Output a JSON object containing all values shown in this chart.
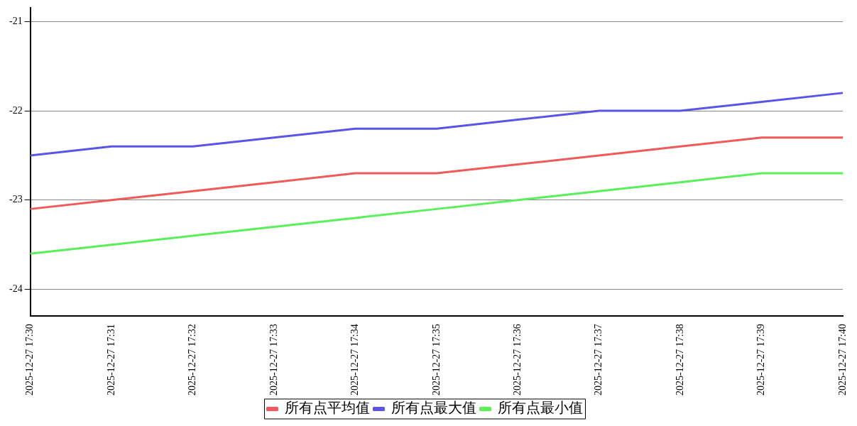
{
  "chart_data": {
    "type": "line",
    "categories": [
      "2025-12-27 17:30",
      "2025-12-27 17:31",
      "2025-12-27 17:32",
      "2025-12-27 17:33",
      "2025-12-27 17:34",
      "2025-12-27 17:35",
      "2025-12-27 17:36",
      "2025-12-27 17:37",
      "2025-12-27 17:38",
      "2025-12-27 17:39",
      "2025-12-27 17:40"
    ],
    "series": [
      {
        "name": "所有点平均值",
        "color": "#f05a5a",
        "values": [
          -23.1,
          -23.0,
          -22.9,
          -22.8,
          -22.7,
          -22.7,
          -22.6,
          -22.5,
          -22.4,
          -22.3,
          -22.3
        ]
      },
      {
        "name": "所有点最大值",
        "color": "#5a55e6",
        "values": [
          -22.5,
          -22.4,
          -22.4,
          -22.3,
          -22.2,
          -22.2,
          -22.1,
          -22.0,
          -22.0,
          -21.9,
          -21.8
        ]
      },
      {
        "name": "所有点最小值",
        "color": "#5af05a",
        "values": [
          -23.6,
          -23.5,
          -23.4,
          -23.3,
          -23.2,
          -23.1,
          -23.0,
          -22.9,
          -22.8,
          -22.7,
          -22.7
        ]
      }
    ],
    "ylim": [
      -24.3,
      -20.85
    ],
    "yticks": [
      -24,
      -23,
      -22,
      -21
    ],
    "grid": "y",
    "legend": "bottom",
    "marker": "none",
    "line_style": "solid"
  }
}
